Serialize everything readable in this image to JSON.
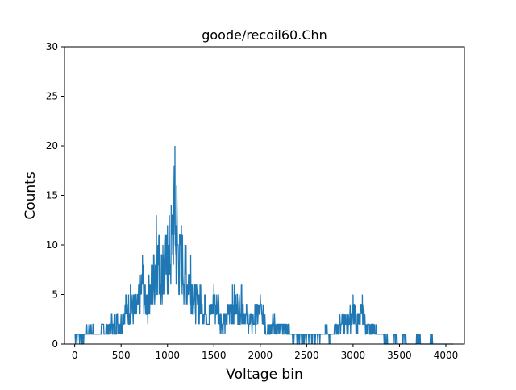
{
  "chart_data": {
    "type": "line",
    "title": "goode/recoil60.Chn",
    "xlabel": "Voltage bin",
    "ylabel": "Counts",
    "xlim": [
      -110,
      4200
    ],
    "ylim": [
      0,
      30
    ],
    "xticks": [
      0,
      500,
      1000,
      1500,
      2000,
      2500,
      3000,
      3500,
      4000
    ],
    "xtick_labels": [
      "0",
      "500",
      "1000",
      "1500",
      "2000",
      "2500",
      "3000",
      "3500",
      "4000"
    ],
    "yticks": [
      0,
      5,
      10,
      15,
      20,
      25,
      30
    ],
    "ytick_labels": [
      "0",
      "5",
      "10",
      "15",
      "20",
      "25",
      "30"
    ],
    "grid": false,
    "line_color": "#1f77b4",
    "series": [
      {
        "style": "spiky histogram (approximate envelope of per-bin counts)",
        "x": [
          0,
          100,
          130,
          200,
          240,
          300,
          350,
          400,
          450,
          500,
          550,
          600,
          650,
          700,
          730,
          760,
          800,
          850,
          880,
          910,
          950,
          1000,
          1040,
          1080,
          1090,
          1100,
          1130,
          1150,
          1200,
          1250,
          1300,
          1350,
          1400,
          1450,
          1500,
          1550,
          1600,
          1650,
          1700,
          1750,
          1800,
          1850,
          1900,
          1950,
          2000,
          2050,
          2100,
          2150,
          2200,
          2250,
          2300,
          2350,
          2400,
          2450,
          2500,
          2550,
          2600,
          2650,
          2700,
          2750,
          2800,
          2850,
          2900,
          2950,
          3000,
          3020,
          3050,
          3100,
          3150,
          3200,
          3250,
          3300,
          3350,
          3400,
          3450,
          3500,
          3550,
          3600,
          3650,
          3700,
          3750,
          3800,
          3850,
          3900,
          3950,
          4000,
          4080
        ],
        "values": [
          1,
          1,
          2,
          2,
          1,
          2,
          2,
          3,
          3,
          3,
          5,
          6,
          5,
          6,
          9,
          6,
          7,
          9,
          13,
          11,
          10,
          12,
          14,
          20,
          12,
          16,
          11,
          12,
          10,
          9,
          6,
          6,
          5,
          4,
          6,
          5,
          3,
          4,
          6,
          5,
          6,
          4,
          3,
          4,
          5,
          3,
          2,
          3,
          2,
          2,
          2,
          1,
          1,
          1,
          1,
          1,
          1,
          1,
          2,
          1,
          2,
          3,
          3,
          3,
          5,
          4,
          3,
          5,
          2,
          2,
          2,
          1,
          1,
          0,
          1,
          0,
          1,
          0,
          0,
          1,
          0,
          0,
          1,
          0,
          0,
          0,
          0
        ]
      }
    ]
  }
}
